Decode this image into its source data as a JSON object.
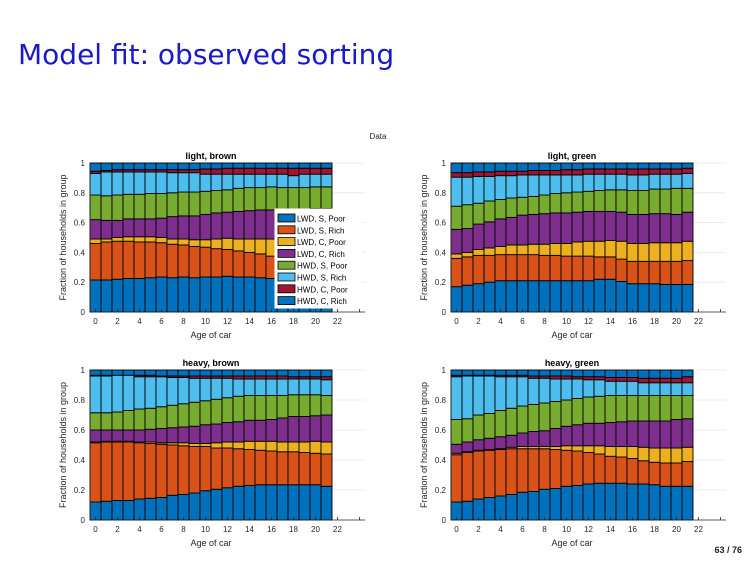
{
  "slide": {
    "title": "Model fit: observed sorting",
    "figure_label": "Data",
    "page_number": "63 / 76"
  },
  "colors": {
    "LWD, S, Poor": "#0072BD",
    "LWD, S, Rich": "#D95319",
    "LWD, C, Poor": "#EDB120",
    "LWD, C, Rich": "#7E2F8E",
    "HWD, S, Poor": "#77AC30",
    "HWD, S, Rich": "#4DBEEE",
    "HWD, C, Poor": "#A2142F",
    "HWD, C, Rich": "#0072BD"
  },
  "chart_data": [
    {
      "type": "bar",
      "stacked": true,
      "title": "light, brown",
      "xlabel": "Age of car",
      "ylabel": "Fraction of households in group",
      "xlim": [
        -0.5,
        24.5
      ],
      "ylim": [
        0,
        1
      ],
      "xticks": [
        0,
        2,
        4,
        6,
        8,
        10,
        12,
        14,
        16,
        18,
        20,
        22
      ],
      "yticks": [
        0,
        0.2,
        0.4,
        0.6,
        0.8,
        1
      ],
      "ytick_labels": [
        "0",
        "0.2",
        "0.4",
        "0.6",
        "0.8",
        "1"
      ],
      "grid": "y",
      "legend": "inside-right",
      "x": [
        0,
        1,
        2,
        3,
        4,
        5,
        6,
        7,
        8,
        9,
        10,
        11,
        12,
        13,
        14,
        15,
        16,
        17,
        18,
        19,
        20,
        21
      ],
      "series_order": [
        "LWD, S, Poor",
        "LWD, S, Rich",
        "LWD, C, Poor",
        "LWD, C, Rich",
        "HWD, S, Poor",
        "HWD, S, Rich",
        "HWD, C, Poor",
        "HWD, C, Rich"
      ],
      "cumulative": [
        [
          0.215,
          0.215,
          0.22,
          0.225,
          0.225,
          0.23,
          0.235,
          0.23,
          0.235,
          0.23,
          0.235,
          0.235,
          0.24,
          0.235,
          0.235,
          0.23,
          0.225,
          0.22,
          0.215,
          0.21,
          0.21,
          0.215
        ],
        [
          0.46,
          0.47,
          0.475,
          0.475,
          0.47,
          0.47,
          0.465,
          0.455,
          0.45,
          0.44,
          0.435,
          0.425,
          0.42,
          0.41,
          0.4,
          0.39,
          0.375,
          0.36,
          0.35,
          0.345,
          0.34,
          0.34
        ],
        [
          0.49,
          0.49,
          0.5,
          0.505,
          0.505,
          0.505,
          0.5,
          0.49,
          0.49,
          0.485,
          0.485,
          0.49,
          0.495,
          0.49,
          0.49,
          0.49,
          0.49,
          0.49,
          0.49,
          0.49,
          0.485,
          0.485
        ],
        [
          0.62,
          0.615,
          0.615,
          0.625,
          0.625,
          0.625,
          0.63,
          0.64,
          0.645,
          0.645,
          0.655,
          0.665,
          0.67,
          0.675,
          0.68,
          0.685,
          0.685,
          0.685,
          0.685,
          0.69,
          0.695,
          0.695
        ],
        [
          0.785,
          0.78,
          0.785,
          0.79,
          0.79,
          0.795,
          0.795,
          0.8,
          0.805,
          0.805,
          0.81,
          0.815,
          0.82,
          0.83,
          0.835,
          0.835,
          0.84,
          0.835,
          0.835,
          0.835,
          0.84,
          0.84
        ],
        [
          0.93,
          0.94,
          0.94,
          0.94,
          0.94,
          0.94,
          0.94,
          0.935,
          0.935,
          0.935,
          0.925,
          0.925,
          0.925,
          0.925,
          0.925,
          0.925,
          0.925,
          0.925,
          0.915,
          0.925,
          0.925,
          0.925
        ],
        [
          0.945,
          0.95,
          0.955,
          0.955,
          0.955,
          0.955,
          0.955,
          0.955,
          0.955,
          0.955,
          0.96,
          0.96,
          0.965,
          0.965,
          0.965,
          0.965,
          0.965,
          0.965,
          0.965,
          0.965,
          0.965,
          0.965
        ],
        [
          1,
          1,
          1,
          1,
          1,
          1,
          1,
          1,
          1,
          1,
          1,
          1,
          1,
          1,
          1,
          1,
          1,
          1,
          1,
          1,
          1,
          1
        ]
      ]
    },
    {
      "type": "bar",
      "stacked": true,
      "title": "light, green",
      "xlabel": "Age of car",
      "ylabel": "Fraction of households in group",
      "xlim": [
        -0.5,
        24.5
      ],
      "ylim": [
        0,
        1
      ],
      "xticks": [
        0,
        2,
        4,
        6,
        8,
        10,
        12,
        14,
        16,
        18,
        20,
        22
      ],
      "yticks": [
        0,
        0.2,
        0.4,
        0.6,
        0.8,
        1
      ],
      "ytick_labels": [
        "0",
        "0.2",
        "0.4",
        "0.6",
        "0.8",
        "1"
      ],
      "grid": "y",
      "legend": "none",
      "x": [
        0,
        1,
        2,
        3,
        4,
        5,
        6,
        7,
        8,
        9,
        10,
        11,
        12,
        13,
        14,
        15,
        16,
        17,
        18,
        19,
        20,
        21
      ],
      "series_order": [
        "LWD, S, Poor",
        "LWD, S, Rich",
        "LWD, C, Poor",
        "LWD, C, Rich",
        "HWD, S, Poor",
        "HWD, S, Rich",
        "HWD, C, Poor",
        "HWD, C, Rich"
      ],
      "cumulative": [
        [
          0.17,
          0.18,
          0.19,
          0.2,
          0.21,
          0.21,
          0.21,
          0.21,
          0.21,
          0.21,
          0.21,
          0.21,
          0.21,
          0.22,
          0.22,
          0.205,
          0.19,
          0.19,
          0.19,
          0.185,
          0.185,
          0.185
        ],
        [
          0.36,
          0.37,
          0.38,
          0.38,
          0.385,
          0.385,
          0.385,
          0.385,
          0.38,
          0.38,
          0.375,
          0.375,
          0.375,
          0.37,
          0.37,
          0.355,
          0.34,
          0.34,
          0.34,
          0.34,
          0.34,
          0.345
        ],
        [
          0.39,
          0.4,
          0.42,
          0.43,
          0.44,
          0.45,
          0.45,
          0.455,
          0.455,
          0.46,
          0.46,
          0.47,
          0.475,
          0.475,
          0.48,
          0.475,
          0.46,
          0.46,
          0.465,
          0.465,
          0.465,
          0.475
        ],
        [
          0.555,
          0.56,
          0.59,
          0.605,
          0.625,
          0.635,
          0.65,
          0.655,
          0.66,
          0.665,
          0.665,
          0.67,
          0.675,
          0.675,
          0.675,
          0.67,
          0.655,
          0.655,
          0.66,
          0.66,
          0.655,
          0.67
        ],
        [
          0.71,
          0.72,
          0.73,
          0.745,
          0.755,
          0.765,
          0.77,
          0.775,
          0.785,
          0.795,
          0.8,
          0.805,
          0.81,
          0.815,
          0.82,
          0.82,
          0.815,
          0.815,
          0.825,
          0.825,
          0.83,
          0.83
        ],
        [
          0.905,
          0.905,
          0.91,
          0.91,
          0.915,
          0.915,
          0.92,
          0.92,
          0.92,
          0.92,
          0.92,
          0.92,
          0.925,
          0.925,
          0.925,
          0.925,
          0.92,
          0.92,
          0.925,
          0.925,
          0.925,
          0.93
        ],
        [
          0.935,
          0.935,
          0.94,
          0.94,
          0.945,
          0.945,
          0.945,
          0.95,
          0.95,
          0.95,
          0.955,
          0.955,
          0.96,
          0.96,
          0.96,
          0.96,
          0.96,
          0.96,
          0.96,
          0.96,
          0.96,
          0.965
        ],
        [
          1,
          1,
          1,
          1,
          1,
          1,
          1,
          1,
          1,
          1,
          1,
          1,
          1,
          1,
          1,
          1,
          1,
          1,
          1,
          1,
          1,
          1
        ]
      ]
    },
    {
      "type": "bar",
      "stacked": true,
      "title": "heavy, brown",
      "xlabel": "Age of car",
      "ylabel": "Fraction of households in group",
      "xlim": [
        -0.5,
        24.5
      ],
      "ylim": [
        0,
        1
      ],
      "xticks": [
        0,
        2,
        4,
        6,
        8,
        10,
        12,
        14,
        16,
        18,
        20,
        22
      ],
      "yticks": [
        0,
        0.2,
        0.4,
        0.6,
        0.8,
        1
      ],
      "ytick_labels": [
        "0",
        "0.2",
        "0.4",
        "0.6",
        "0.8",
        "1"
      ],
      "grid": "y",
      "legend": "none",
      "x": [
        0,
        1,
        2,
        3,
        4,
        5,
        6,
        7,
        8,
        9,
        10,
        11,
        12,
        13,
        14,
        15,
        16,
        17,
        18,
        19,
        20,
        21
      ],
      "series_order": [
        "LWD, S, Poor",
        "LWD, S, Rich",
        "LWD, C, Poor",
        "LWD, C, Rich",
        "HWD, S, Poor",
        "HWD, S, Rich",
        "HWD, C, Poor",
        "HWD, C, Rich"
      ],
      "cumulative": [
        [
          0.12,
          0.125,
          0.13,
          0.13,
          0.14,
          0.145,
          0.15,
          0.165,
          0.17,
          0.18,
          0.195,
          0.205,
          0.215,
          0.225,
          0.23,
          0.235,
          0.235,
          0.235,
          0.235,
          0.235,
          0.235,
          0.225
        ],
        [
          0.515,
          0.52,
          0.52,
          0.52,
          0.515,
          0.51,
          0.505,
          0.5,
          0.495,
          0.49,
          0.49,
          0.48,
          0.48,
          0.475,
          0.47,
          0.465,
          0.46,
          0.455,
          0.455,
          0.45,
          0.445,
          0.44
        ],
        [
          0.52,
          0.525,
          0.525,
          0.525,
          0.52,
          0.52,
          0.515,
          0.515,
          0.515,
          0.51,
          0.51,
          0.515,
          0.52,
          0.52,
          0.525,
          0.525,
          0.525,
          0.52,
          0.52,
          0.52,
          0.525,
          0.52
        ],
        [
          0.6,
          0.6,
          0.6,
          0.6,
          0.6,
          0.605,
          0.61,
          0.615,
          0.62,
          0.625,
          0.635,
          0.64,
          0.65,
          0.655,
          0.665,
          0.665,
          0.67,
          0.68,
          0.69,
          0.69,
          0.695,
          0.7
        ],
        [
          0.715,
          0.715,
          0.72,
          0.73,
          0.74,
          0.745,
          0.755,
          0.765,
          0.775,
          0.785,
          0.795,
          0.805,
          0.815,
          0.825,
          0.83,
          0.83,
          0.83,
          0.83,
          0.835,
          0.835,
          0.835,
          0.83
        ],
        [
          0.96,
          0.96,
          0.965,
          0.965,
          0.955,
          0.955,
          0.955,
          0.95,
          0.95,
          0.945,
          0.945,
          0.945,
          0.945,
          0.94,
          0.94,
          0.94,
          0.94,
          0.94,
          0.94,
          0.94,
          0.94,
          0.935
        ],
        [
          0.965,
          0.965,
          0.965,
          0.965,
          0.965,
          0.965,
          0.96,
          0.96,
          0.96,
          0.96,
          0.96,
          0.96,
          0.96,
          0.96,
          0.96,
          0.96,
          0.96,
          0.96,
          0.955,
          0.955,
          0.955,
          0.955
        ],
        [
          1,
          1,
          1,
          1,
          1,
          1,
          1,
          1,
          1,
          1,
          1,
          1,
          1,
          1,
          1,
          1,
          1,
          1,
          1,
          1,
          1,
          1
        ]
      ]
    },
    {
      "type": "bar",
      "stacked": true,
      "title": "heavy, green",
      "xlabel": "Age of car",
      "ylabel": "Fraction of households in group",
      "xlim": [
        -0.5,
        24.5
      ],
      "ylim": [
        0,
        1
      ],
      "xticks": [
        0,
        2,
        4,
        6,
        8,
        10,
        12,
        14,
        16,
        18,
        20,
        22
      ],
      "yticks": [
        0,
        0.2,
        0.4,
        0.6,
        0.8,
        1
      ],
      "ytick_labels": [
        "0",
        "0.2",
        "0.4",
        "0.6",
        "0.8",
        "1"
      ],
      "grid": "y",
      "legend": "none",
      "x": [
        0,
        1,
        2,
        3,
        4,
        5,
        6,
        7,
        8,
        9,
        10,
        11,
        12,
        13,
        14,
        15,
        16,
        17,
        18,
        19,
        20,
        21
      ],
      "series_order": [
        "LWD, S, Poor",
        "LWD, S, Rich",
        "LWD, C, Poor",
        "LWD, C, Rich",
        "HWD, S, Poor",
        "HWD, S, Rich",
        "HWD, C, Poor",
        "HWD, C, Rich"
      ],
      "cumulative": [
        [
          0.12,
          0.125,
          0.14,
          0.15,
          0.16,
          0.17,
          0.185,
          0.19,
          0.205,
          0.21,
          0.225,
          0.23,
          0.24,
          0.245,
          0.245,
          0.245,
          0.24,
          0.24,
          0.235,
          0.225,
          0.225,
          0.225
        ],
        [
          0.435,
          0.45,
          0.46,
          0.465,
          0.47,
          0.475,
          0.475,
          0.475,
          0.475,
          0.47,
          0.465,
          0.46,
          0.45,
          0.44,
          0.425,
          0.42,
          0.41,
          0.395,
          0.385,
          0.38,
          0.38,
          0.39
        ],
        [
          0.445,
          0.455,
          0.465,
          0.47,
          0.475,
          0.485,
          0.49,
          0.49,
          0.49,
          0.49,
          0.495,
          0.495,
          0.495,
          0.495,
          0.49,
          0.49,
          0.49,
          0.485,
          0.48,
          0.48,
          0.48,
          0.485
        ],
        [
          0.505,
          0.52,
          0.535,
          0.545,
          0.555,
          0.565,
          0.58,
          0.59,
          0.595,
          0.61,
          0.625,
          0.635,
          0.645,
          0.645,
          0.65,
          0.655,
          0.66,
          0.66,
          0.66,
          0.66,
          0.67,
          0.675
        ],
        [
          0.67,
          0.675,
          0.7,
          0.71,
          0.73,
          0.745,
          0.76,
          0.77,
          0.78,
          0.79,
          0.8,
          0.81,
          0.82,
          0.825,
          0.83,
          0.83,
          0.83,
          0.83,
          0.83,
          0.83,
          0.83,
          0.83
        ],
        [
          0.955,
          0.96,
          0.96,
          0.96,
          0.955,
          0.955,
          0.955,
          0.945,
          0.945,
          0.94,
          0.94,
          0.94,
          0.935,
          0.935,
          0.925,
          0.925,
          0.925,
          0.915,
          0.915,
          0.915,
          0.915,
          0.915
        ],
        [
          0.965,
          0.965,
          0.965,
          0.965,
          0.965,
          0.965,
          0.965,
          0.96,
          0.96,
          0.96,
          0.96,
          0.955,
          0.955,
          0.955,
          0.95,
          0.95,
          0.95,
          0.945,
          0.945,
          0.945,
          0.945,
          0.955
        ],
        [
          1,
          1,
          1,
          1,
          1,
          1,
          1,
          1,
          1,
          1,
          1,
          1,
          1,
          1,
          1,
          1,
          1,
          1,
          1,
          1,
          1,
          1
        ]
      ]
    }
  ]
}
